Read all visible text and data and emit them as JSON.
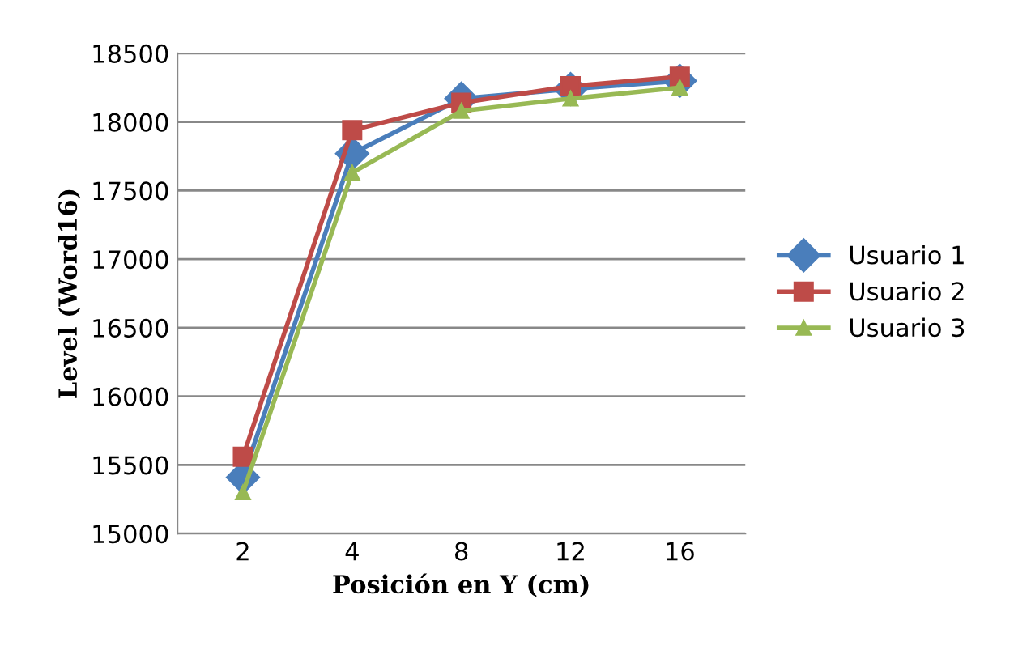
{
  "chart_data": {
    "type": "line",
    "xlabel": "Posición en Y (cm)",
    "ylabel": "Level (Word16)",
    "categories": [
      "2",
      "4",
      "8",
      "12",
      "16"
    ],
    "series": [
      {
        "name": "Usuario 1",
        "color": "#4a7ebb",
        "marker": "diamond",
        "values": [
          15410,
          17770,
          18170,
          18240,
          18300
        ]
      },
      {
        "name": "Usuario 2",
        "color": "#be4b48",
        "marker": "square",
        "values": [
          15560,
          17940,
          18140,
          18260,
          18330
        ]
      },
      {
        "name": "Usuario 3",
        "color": "#98b954",
        "marker": "triangle",
        "values": [
          15300,
          17630,
          18080,
          18170,
          18250
        ]
      }
    ],
    "ylim": [
      15000,
      18500
    ],
    "yticks": [
      15000,
      15500,
      16000,
      16500,
      17000,
      17500,
      18000,
      18500
    ],
    "grid": "y",
    "legend": "right"
  }
}
